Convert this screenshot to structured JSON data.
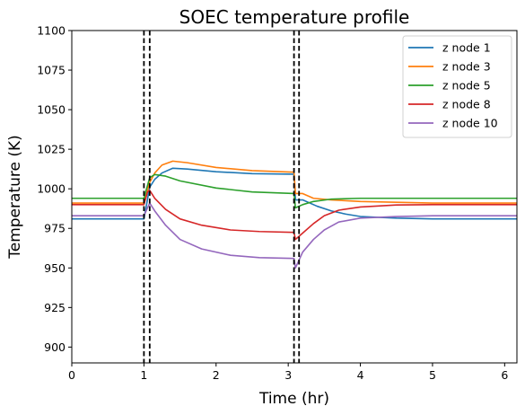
{
  "chart_data": {
    "type": "line",
    "title": "SOEC temperature profile",
    "xlabel": "Time (hr)",
    "ylabel": "Temperature (K)",
    "xlim": [
      0,
      6.17
    ],
    "ylim": [
      890,
      1100
    ],
    "xticks": [
      0,
      1,
      2,
      3,
      4,
      5,
      6
    ],
    "yticks": [
      900,
      925,
      950,
      975,
      1000,
      1025,
      1050,
      1075,
      1100
    ],
    "grid": false,
    "legend_position": "top-right",
    "vertical_lines": [
      1.0,
      1.08,
      3.08,
      3.15
    ],
    "vertical_line_style": "dashed-black",
    "series": [
      {
        "name": "z node 1",
        "color": "#1f77b4",
        "points": [
          [
            0,
            981
          ],
          [
            1.0,
            981
          ],
          [
            1.08,
            1001
          ],
          [
            1.15,
            1006
          ],
          [
            1.25,
            1010
          ],
          [
            1.4,
            1013
          ],
          [
            1.6,
            1012.5
          ],
          [
            2.0,
            1010.8
          ],
          [
            2.5,
            1009.6
          ],
          [
            3.08,
            1009.2
          ],
          [
            3.1,
            993
          ],
          [
            3.2,
            993
          ],
          [
            3.4,
            989
          ],
          [
            3.6,
            986
          ],
          [
            3.8,
            984
          ],
          [
            4.0,
            982.5
          ],
          [
            4.5,
            981.5
          ],
          [
            5.0,
            981
          ],
          [
            6.17,
            981
          ]
        ]
      },
      {
        "name": "z node 3",
        "color": "#ff7f0e",
        "points": [
          [
            0,
            991
          ],
          [
            1.0,
            991
          ],
          [
            1.08,
            1004
          ],
          [
            1.15,
            1010
          ],
          [
            1.25,
            1015
          ],
          [
            1.4,
            1017.5
          ],
          [
            1.6,
            1016.5
          ],
          [
            2.0,
            1013.5
          ],
          [
            2.5,
            1011.5
          ],
          [
            3.08,
            1010.5
          ],
          [
            3.1,
            997
          ],
          [
            3.2,
            997
          ],
          [
            3.35,
            994
          ],
          [
            3.6,
            993
          ],
          [
            4.0,
            992
          ],
          [
            5.0,
            991
          ],
          [
            6.17,
            991
          ]
        ]
      },
      {
        "name": "z node 5",
        "color": "#2ca02c",
        "points": [
          [
            0,
            994
          ],
          [
            1.0,
            994
          ],
          [
            1.03,
            999
          ],
          [
            1.08,
            1007
          ],
          [
            1.15,
            1009
          ],
          [
            1.3,
            1008
          ],
          [
            1.5,
            1005
          ],
          [
            2.0,
            1000.5
          ],
          [
            2.5,
            998
          ],
          [
            3.08,
            997
          ],
          [
            3.1,
            988
          ],
          [
            3.2,
            990
          ],
          [
            3.35,
            992
          ],
          [
            3.6,
            993.5
          ],
          [
            4.0,
            994
          ],
          [
            6.17,
            994
          ]
        ]
      },
      {
        "name": "z node 8",
        "color": "#d62728",
        "points": [
          [
            0,
            990
          ],
          [
            1.0,
            990
          ],
          [
            1.05,
            998
          ],
          [
            1.08,
            999
          ],
          [
            1.15,
            994
          ],
          [
            1.3,
            987
          ],
          [
            1.5,
            981
          ],
          [
            1.8,
            977
          ],
          [
            2.2,
            974
          ],
          [
            2.6,
            973
          ],
          [
            3.08,
            972.5
          ],
          [
            3.1,
            968
          ],
          [
            3.2,
            972
          ],
          [
            3.35,
            978
          ],
          [
            3.5,
            983
          ],
          [
            3.7,
            986.5
          ],
          [
            4.0,
            988.5
          ],
          [
            4.5,
            989.8
          ],
          [
            5.0,
            990
          ],
          [
            6.17,
            990
          ]
        ]
      },
      {
        "name": "z node 10",
        "color": "#9467bd",
        "points": [
          [
            0,
            983
          ],
          [
            1.0,
            983
          ],
          [
            1.08,
            991
          ],
          [
            1.15,
            986
          ],
          [
            1.3,
            977
          ],
          [
            1.5,
            968
          ],
          [
            1.8,
            962
          ],
          [
            2.2,
            958
          ],
          [
            2.6,
            956.5
          ],
          [
            3.08,
            956
          ],
          [
            3.1,
            950
          ],
          [
            3.2,
            960
          ],
          [
            3.35,
            968
          ],
          [
            3.5,
            974
          ],
          [
            3.7,
            979
          ],
          [
            4.0,
            981.5
          ],
          [
            4.5,
            982.5
          ],
          [
            5.0,
            983
          ],
          [
            6.17,
            983
          ]
        ]
      }
    ]
  }
}
